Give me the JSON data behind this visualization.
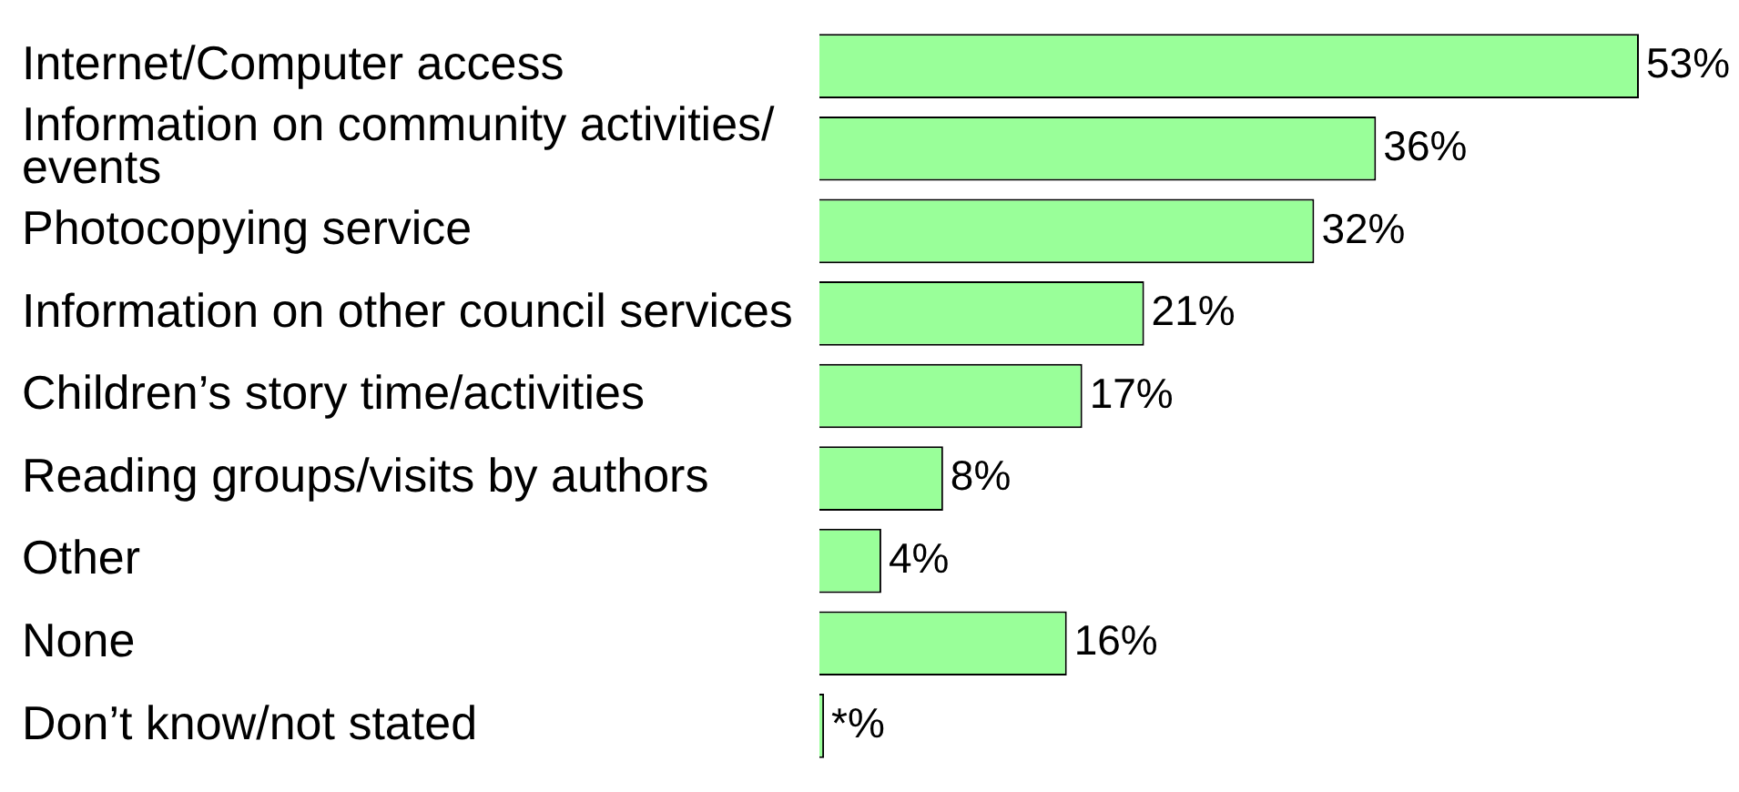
{
  "chart_data": {
    "type": "bar",
    "orientation": "horizontal",
    "categories": [
      "Internet/Computer access",
      "Information on community activities/ events",
      "Photocopying service",
      "Information on other council services",
      "Children’s story time/activities",
      "Reading groups/visits by authors",
      "Other",
      "None",
      "Don’t know/not stated"
    ],
    "values": [
      53,
      36,
      32,
      21,
      17,
      8,
      4,
      16,
      0.3
    ],
    "value_labels": [
      "53%",
      "36%",
      "32%",
      "21%",
      "17%",
      "8%",
      "4%",
      "16%",
      "*%"
    ],
    "color": "#99ff99"
  }
}
